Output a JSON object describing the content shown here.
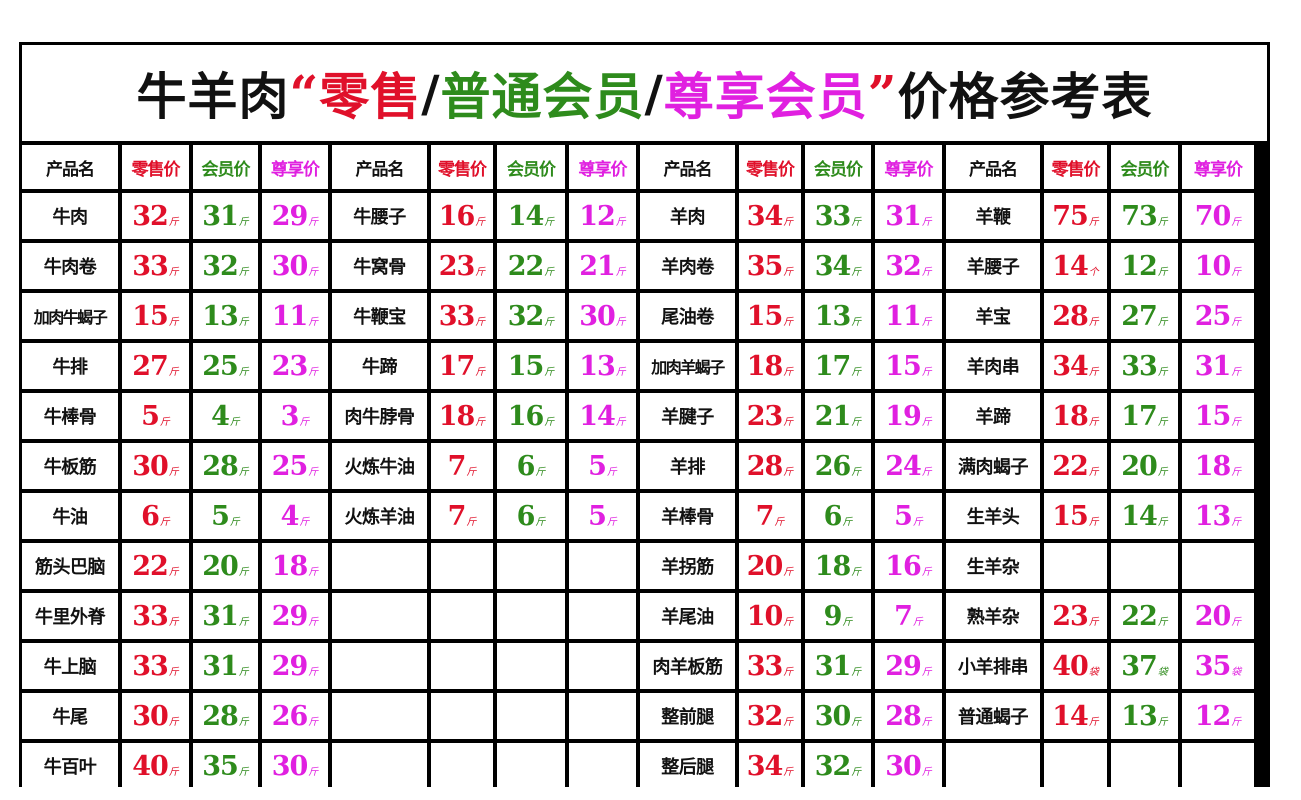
{
  "title": {
    "prefix": "牛羊肉",
    "open_quote": "“",
    "retail": "零售",
    "sep1": "/",
    "member": "普通会员",
    "sep2": "/",
    "vip": "尊享会员",
    "close_quote": "”",
    "suffix": "价格参考表"
  },
  "colors": {
    "retail": "#e0102a",
    "member": "#2e8b1c",
    "vip": "#e020e0",
    "text": "#111111"
  },
  "headers": {
    "name": "产品名",
    "retail": "零售价",
    "member": "会员价",
    "vip": "尊享价"
  },
  "blocks": [
    {
      "rows": [
        {
          "name": "牛肉",
          "retail": "32",
          "member": "31",
          "vip": "29",
          "units": [
            "斤",
            "斤",
            "斤"
          ]
        },
        {
          "name": "牛肉卷",
          "retail": "33",
          "member": "32",
          "vip": "30",
          "units": [
            "斤",
            "斤",
            "斤"
          ]
        },
        {
          "name": "加肉牛蝎子",
          "retail": "15",
          "member": "13",
          "vip": "11",
          "units": [
            "斤",
            "斤",
            "斤"
          ]
        },
        {
          "name": "牛排",
          "retail": "27",
          "member": "25",
          "vip": "23",
          "units": [
            "斤",
            "斤",
            "斤"
          ]
        },
        {
          "name": "牛棒骨",
          "retail": "5",
          "member": "4",
          "vip": "3",
          "units": [
            "斤",
            "斤",
            "斤"
          ]
        },
        {
          "name": "牛板筋",
          "retail": "30",
          "member": "28",
          "vip": "25",
          "units": [
            "斤",
            "斤",
            "斤"
          ]
        },
        {
          "name": "牛油",
          "retail": "6",
          "member": "5",
          "vip": "4",
          "units": [
            "斤",
            "斤",
            "斤"
          ]
        },
        {
          "name": "筋头巴脑",
          "retail": "22",
          "member": "20",
          "vip": "18",
          "units": [
            "斤",
            "斤",
            "斤"
          ]
        },
        {
          "name": "牛里外脊",
          "retail": "33",
          "member": "31",
          "vip": "29",
          "units": [
            "斤",
            "斤",
            "斤"
          ]
        },
        {
          "name": "牛上脑",
          "retail": "33",
          "member": "31",
          "vip": "29",
          "units": [
            "斤",
            "斤",
            "斤"
          ]
        },
        {
          "name": "牛尾",
          "retail": "30",
          "member": "28",
          "vip": "26",
          "units": [
            "斤",
            "斤",
            "斤"
          ]
        },
        {
          "name": "牛百叶",
          "retail": "40",
          "member": "35",
          "vip": "30",
          "units": [
            "斤",
            "斤",
            "斤"
          ]
        }
      ]
    },
    {
      "rows": [
        {
          "name": "牛腰子",
          "retail": "16",
          "member": "14",
          "vip": "12",
          "units": [
            "斤",
            "斤",
            "斤"
          ]
        },
        {
          "name": "牛窝骨",
          "retail": "23",
          "member": "22",
          "vip": "21",
          "units": [
            "斤",
            "斤",
            "斤"
          ]
        },
        {
          "name": "牛鞭宝",
          "retail": "33",
          "member": "32",
          "vip": "30",
          "units": [
            "斤",
            "斤",
            "斤"
          ]
        },
        {
          "name": "牛蹄",
          "retail": "17",
          "member": "15",
          "vip": "13",
          "units": [
            "斤",
            "斤",
            "斤"
          ]
        },
        {
          "name": "肉牛脖骨",
          "retail": "18",
          "member": "16",
          "vip": "14",
          "units": [
            "斤",
            "斤",
            "斤"
          ]
        },
        {
          "name": "火炼牛油",
          "retail": "7",
          "member": "6",
          "vip": "5",
          "units": [
            "斤",
            "斤",
            "斤"
          ]
        },
        {
          "name": "火炼羊油",
          "retail": "7",
          "member": "6",
          "vip": "5",
          "units": [
            "斤",
            "斤",
            "斤"
          ]
        },
        {},
        {},
        {},
        {},
        {}
      ]
    },
    {
      "rows": [
        {
          "name": "羊肉",
          "retail": "34",
          "member": "33",
          "vip": "31",
          "units": [
            "斤",
            "斤",
            "斤"
          ]
        },
        {
          "name": "羊肉卷",
          "retail": "35",
          "member": "34",
          "vip": "32",
          "units": [
            "斤",
            "斤",
            "斤"
          ]
        },
        {
          "name": "尾油卷",
          "retail": "15",
          "member": "13",
          "vip": "11",
          "units": [
            "斤",
            "斤",
            "斤"
          ]
        },
        {
          "name": "加肉羊蝎子",
          "retail": "18",
          "member": "17",
          "vip": "15",
          "units": [
            "斤",
            "斤",
            "斤"
          ]
        },
        {
          "name": "羊腱子",
          "retail": "23",
          "member": "21",
          "vip": "19",
          "units": [
            "斤",
            "斤",
            "斤"
          ]
        },
        {
          "name": "羊排",
          "retail": "28",
          "member": "26",
          "vip": "24",
          "units": [
            "斤",
            "斤",
            "斤"
          ]
        },
        {
          "name": "羊棒骨",
          "retail": "7",
          "member": "6",
          "vip": "5",
          "units": [
            "斤",
            "斤",
            "斤"
          ]
        },
        {
          "name": "羊拐筋",
          "retail": "20",
          "member": "18",
          "vip": "16",
          "units": [
            "斤",
            "斤",
            "斤"
          ]
        },
        {
          "name": "羊尾油",
          "retail": "10",
          "member": "9",
          "vip": "7",
          "units": [
            "斤",
            "斤",
            "斤"
          ]
        },
        {
          "name": "肉羊板筋",
          "retail": "33",
          "member": "31",
          "vip": "29",
          "units": [
            "斤",
            "斤",
            "斤"
          ]
        },
        {
          "name": "整前腿",
          "retail": "32",
          "member": "30",
          "vip": "28",
          "units": [
            "斤",
            "斤",
            "斤"
          ]
        },
        {
          "name": "整后腿",
          "retail": "34",
          "member": "32",
          "vip": "30",
          "units": [
            "斤",
            "斤",
            "斤"
          ]
        }
      ]
    },
    {
      "rows": [
        {
          "name": "羊鞭",
          "retail": "75",
          "member": "73",
          "vip": "70",
          "units": [
            "斤",
            "斤",
            "斤"
          ]
        },
        {
          "name": "羊腰子",
          "retail": "14",
          "member": "12",
          "vip": "10",
          "units": [
            "个",
            "斤",
            "斤"
          ]
        },
        {
          "name": "羊宝",
          "retail": "28",
          "member": "27",
          "vip": "25",
          "units": [
            "斤",
            "斤",
            "斤"
          ]
        },
        {
          "name": "羊肉串",
          "retail": "34",
          "member": "33",
          "vip": "31",
          "units": [
            "斤",
            "斤",
            "斤"
          ]
        },
        {
          "name": "羊蹄",
          "retail": "18",
          "member": "17",
          "vip": "15",
          "units": [
            "斤",
            "斤",
            "斤"
          ]
        },
        {
          "name": "满肉蝎子",
          "retail": "22",
          "member": "20",
          "vip": "18",
          "units": [
            "斤",
            "斤",
            "斤"
          ]
        },
        {
          "name": "生羊头",
          "retail": "15",
          "member": "14",
          "vip": "13",
          "units": [
            "斤",
            "斤",
            "斤"
          ]
        },
        {
          "name": "生羊杂"
        },
        {
          "name": "熟羊杂",
          "retail": "23",
          "member": "22",
          "vip": "20",
          "units": [
            "斤",
            "斤",
            "斤"
          ]
        },
        {
          "name": "小羊排串",
          "retail": "40",
          "member": "37",
          "vip": "35",
          "units": [
            "袋",
            "袋",
            "袋"
          ]
        },
        {
          "name": "普通蝎子",
          "retail": "14",
          "member": "13",
          "vip": "12",
          "units": [
            "斤",
            "斤",
            "斤"
          ]
        },
        {}
      ]
    }
  ]
}
